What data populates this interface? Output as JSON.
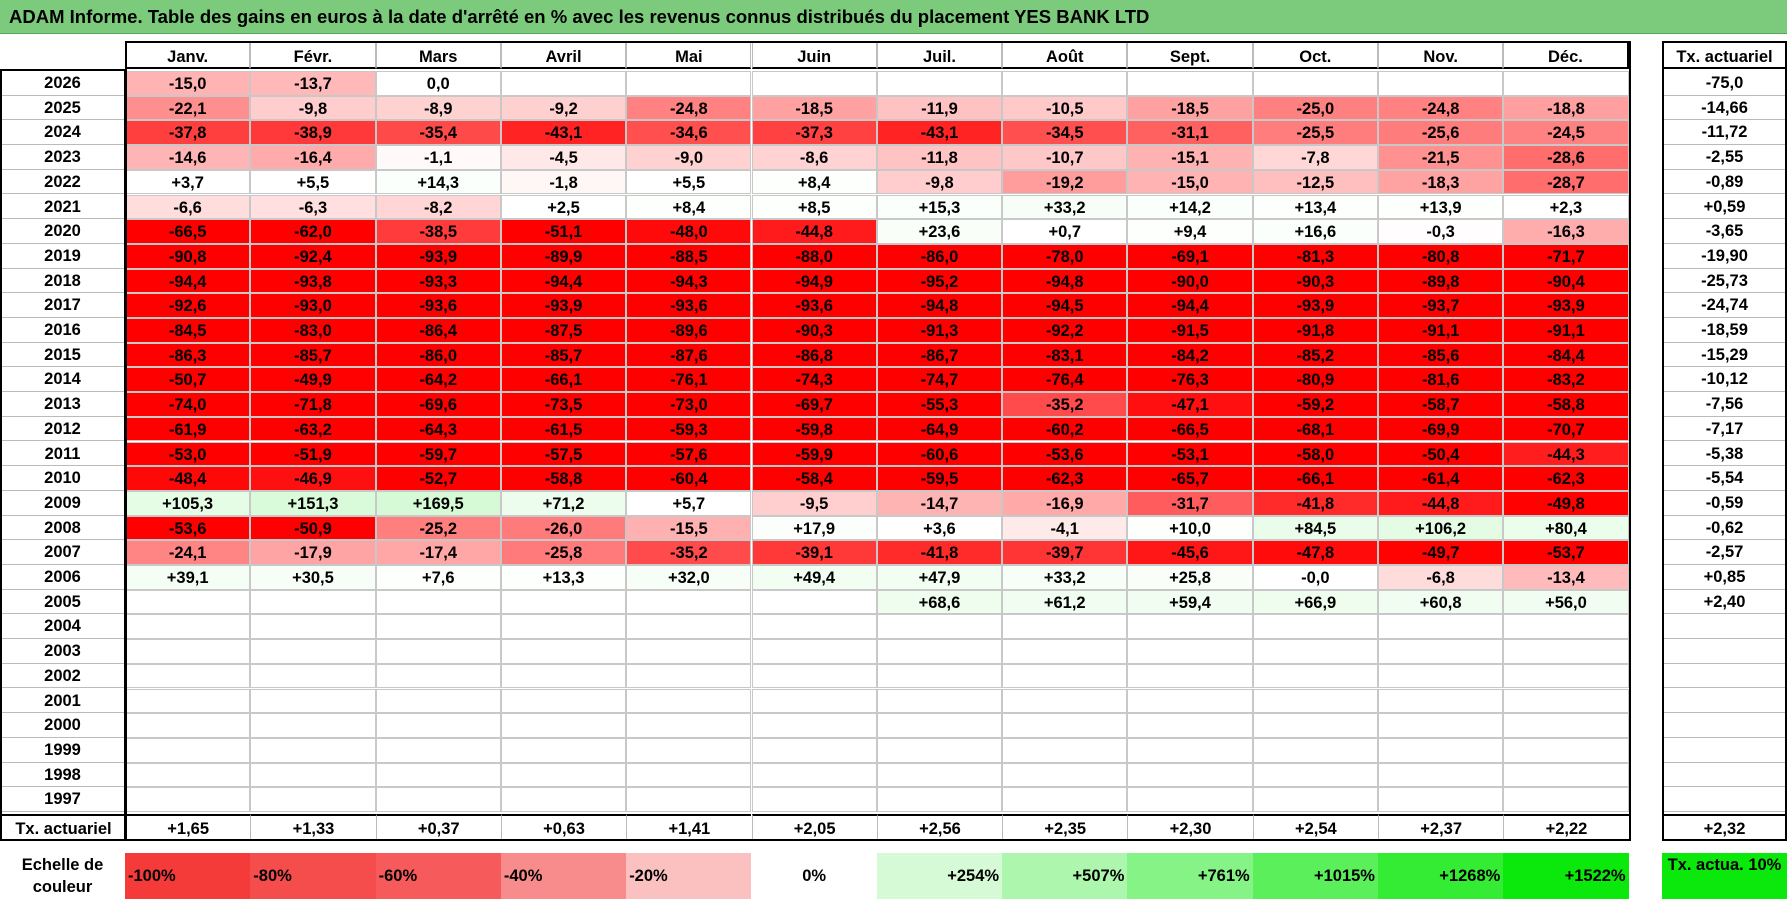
{
  "title": "ADAM Informe. Table des gains en euros à la date d'arrêté en % avec les revenus connus distribués du placement YES BANK LTD",
  "chart_data": {
    "type": "heatmap",
    "months": [
      "Janv.",
      "Févr.",
      "Mars",
      "Avril",
      "Mai",
      "Juin",
      "Juil.",
      "Août",
      "Sept.",
      "Oct.",
      "Nov.",
      "Déc."
    ],
    "annual_header": "Tx. actuariel",
    "rows": [
      {
        "year": "2026",
        "values": [
          "-15,0",
          "-13,7",
          "0,0",
          "",
          "",
          "",
          "",
          "",
          "",
          "",
          "",
          ""
        ],
        "annual": "-75,0"
      },
      {
        "year": "2025",
        "values": [
          "-22,1",
          "-9,8",
          "-8,9",
          "-9,2",
          "-24,8",
          "-18,5",
          "-11,9",
          "-10,5",
          "-18,5",
          "-25,0",
          "-24,8",
          "-18,8"
        ],
        "annual": "-14,66"
      },
      {
        "year": "2024",
        "values": [
          "-37,8",
          "-38,9",
          "-35,4",
          "-43,1",
          "-34,6",
          "-37,3",
          "-43,1",
          "-34,5",
          "-31,1",
          "-25,5",
          "-25,6",
          "-24,5"
        ],
        "annual": "-11,72"
      },
      {
        "year": "2023",
        "values": [
          "-14,6",
          "-16,4",
          "-1,1",
          "-4,5",
          "-9,0",
          "-8,6",
          "-11,8",
          "-10,7",
          "-15,1",
          "-7,8",
          "-21,5",
          "-28,6"
        ],
        "annual": "-2,55"
      },
      {
        "year": "2022",
        "values": [
          "+3,7",
          "+5,5",
          "+14,3",
          "-1,8",
          "+5,5",
          "+8,4",
          "-9,8",
          "-19,2",
          "-15,0",
          "-12,5",
          "-18,3",
          "-28,7"
        ],
        "annual": "-0,89"
      },
      {
        "year": "2021",
        "values": [
          "-6,6",
          "-6,3",
          "-8,2",
          "+2,5",
          "+8,4",
          "+8,5",
          "+15,3",
          "+33,2",
          "+14,2",
          "+13,4",
          "+13,9",
          "+2,3"
        ],
        "annual": "+0,59"
      },
      {
        "year": "2020",
        "values": [
          "-66,5",
          "-62,0",
          "-38,5",
          "-51,1",
          "-48,0",
          "-44,8",
          "+23,6",
          "+0,7",
          "+9,4",
          "+16,6",
          "-0,3",
          "-16,3"
        ],
        "annual": "-3,65"
      },
      {
        "year": "2019",
        "values": [
          "-90,8",
          "-92,4",
          "-93,9",
          "-89,9",
          "-88,5",
          "-88,0",
          "-86,0",
          "-78,0",
          "-69,1",
          "-81,3",
          "-80,8",
          "-71,7"
        ],
        "annual": "-19,90"
      },
      {
        "year": "2018",
        "values": [
          "-94,4",
          "-93,8",
          "-93,3",
          "-94,4",
          "-94,3",
          "-94,9",
          "-95,2",
          "-94,8",
          "-90,0",
          "-90,3",
          "-89,8",
          "-90,4"
        ],
        "annual": "-25,73"
      },
      {
        "year": "2017",
        "values": [
          "-92,6",
          "-93,0",
          "-93,6",
          "-93,9",
          "-93,6",
          "-93,6",
          "-94,8",
          "-94,5",
          "-94,4",
          "-93,9",
          "-93,7",
          "-93,9"
        ],
        "annual": "-24,74"
      },
      {
        "year": "2016",
        "values": [
          "-84,5",
          "-83,0",
          "-86,4",
          "-87,5",
          "-89,6",
          "-90,3",
          "-91,3",
          "-92,2",
          "-91,5",
          "-91,8",
          "-91,1",
          "-91,1"
        ],
        "annual": "-18,59"
      },
      {
        "year": "2015",
        "values": [
          "-86,3",
          "-85,7",
          "-86,0",
          "-85,7",
          "-87,6",
          "-86,8",
          "-86,7",
          "-83,1",
          "-84,2",
          "-85,2",
          "-85,6",
          "-84,4"
        ],
        "annual": "-15,29"
      },
      {
        "year": "2014",
        "values": [
          "-50,7",
          "-49,9",
          "-64,2",
          "-66,1",
          "-76,1",
          "-74,3",
          "-74,7",
          "-76,4",
          "-76,3",
          "-80,9",
          "-81,6",
          "-83,2"
        ],
        "annual": "-10,12"
      },
      {
        "year": "2013",
        "values": [
          "-74,0",
          "-71,8",
          "-69,6",
          "-73,5",
          "-73,0",
          "-69,7",
          "-55,3",
          "-35,2",
          "-47,1",
          "-59,2",
          "-58,7",
          "-58,8"
        ],
        "annual": "-7,56"
      },
      {
        "year": "2012",
        "values": [
          "-61,9",
          "-63,2",
          "-64,3",
          "-61,5",
          "-59,3",
          "-59,8",
          "-64,9",
          "-60,2",
          "-66,5",
          "-68,1",
          "-69,9",
          "-70,7"
        ],
        "annual": "-7,17"
      },
      {
        "year": "2011",
        "values": [
          "-53,0",
          "-51,9",
          "-59,7",
          "-57,5",
          "-57,6",
          "-59,9",
          "-60,6",
          "-53,6",
          "-53,1",
          "-58,0",
          "-50,4",
          "-44,3"
        ],
        "annual": "-5,38"
      },
      {
        "year": "2010",
        "values": [
          "-48,4",
          "-46,9",
          "-52,7",
          "-58,8",
          "-60,4",
          "-58,4",
          "-59,5",
          "-62,3",
          "-65,7",
          "-66,1",
          "-61,4",
          "-62,3"
        ],
        "annual": "-5,54"
      },
      {
        "year": "2009",
        "values": [
          "+105,3",
          "+151,3",
          "+169,5",
          "+71,2",
          "+5,7",
          "-9,5",
          "-14,7",
          "-16,9",
          "-31,7",
          "-41,8",
          "-44,8",
          "-49,8"
        ],
        "annual": "-0,59"
      },
      {
        "year": "2008",
        "values": [
          "-53,6",
          "-50,9",
          "-25,2",
          "-26,0",
          "-15,5",
          "+17,9",
          "+3,6",
          "-4,1",
          "+10,0",
          "+84,5",
          "+106,2",
          "+80,4"
        ],
        "annual": "-0,62"
      },
      {
        "year": "2007",
        "values": [
          "-24,1",
          "-17,9",
          "-17,4",
          "-25,8",
          "-35,2",
          "-39,1",
          "-41,8",
          "-39,7",
          "-45,6",
          "-47,8",
          "-49,7",
          "-53,7"
        ],
        "annual": "-2,57"
      },
      {
        "year": "2006",
        "values": [
          "+39,1",
          "+30,5",
          "+7,6",
          "+13,3",
          "+32,0",
          "+49,4",
          "+47,9",
          "+33,2",
          "+25,8",
          "-0,0",
          "-6,8",
          "-13,4"
        ],
        "annual": "+0,85"
      },
      {
        "year": "2005",
        "values": [
          "",
          "",
          "",
          "",
          "",
          "",
          "+68,6",
          "+61,2",
          "+59,4",
          "+66,9",
          "+60,8",
          "+56,0"
        ],
        "annual": "+2,40"
      },
      {
        "year": "2004",
        "values": [
          "",
          "",
          "",
          "",
          "",
          "",
          "",
          "",
          "",
          "",
          "",
          ""
        ],
        "annual": ""
      },
      {
        "year": "2003",
        "values": [
          "",
          "",
          "",
          "",
          "",
          "",
          "",
          "",
          "",
          "",
          "",
          ""
        ],
        "annual": ""
      },
      {
        "year": "2002",
        "values": [
          "",
          "",
          "",
          "",
          "",
          "",
          "",
          "",
          "",
          "",
          "",
          ""
        ],
        "annual": ""
      },
      {
        "year": "2001",
        "values": [
          "",
          "",
          "",
          "",
          "",
          "",
          "",
          "",
          "",
          "",
          "",
          ""
        ],
        "annual": ""
      },
      {
        "year": "2000",
        "values": [
          "",
          "",
          "",
          "",
          "",
          "",
          "",
          "",
          "",
          "",
          "",
          ""
        ],
        "annual": ""
      },
      {
        "year": "1999",
        "values": [
          "",
          "",
          "",
          "",
          "",
          "",
          "",
          "",
          "",
          "",
          "",
          ""
        ],
        "annual": ""
      },
      {
        "year": "1998",
        "values": [
          "",
          "",
          "",
          "",
          "",
          "",
          "",
          "",
          "",
          "",
          "",
          ""
        ],
        "annual": ""
      },
      {
        "year": "1997",
        "values": [
          "",
          "",
          "",
          "",
          "",
          "",
          "",
          "",
          "",
          "",
          "",
          ""
        ],
        "annual": ""
      }
    ],
    "footer": {
      "label": "Tx. actuariel",
      "values": [
        "+1,65",
        "+1,33",
        "+0,37",
        "+0,63",
        "+1,41",
        "+2,05",
        "+2,56",
        "+2,35",
        "+2,30",
        "+2,54",
        "+2,37",
        "+2,22"
      ],
      "annual": "+2,32"
    },
    "color_scale": {
      "label": "Echelle de couleur",
      "stops": [
        {
          "label": "-100%",
          "color": "#f53a3a"
        },
        {
          "label": "-80%",
          "color": "#f54c4c"
        },
        {
          "label": "-60%",
          "color": "#f65a5a"
        },
        {
          "label": "-40%",
          "color": "#f88c8c"
        },
        {
          "label": "-20%",
          "color": "#fbc0c0"
        },
        {
          "label": "0%",
          "color": "#ffffff"
        },
        {
          "label": "+254%",
          "color": "#d6fad6"
        },
        {
          "label": "+507%",
          "color": "#adf6ad"
        },
        {
          "label": "+761%",
          "color": "#85f385"
        },
        {
          "label": "+1015%",
          "color": "#5cef5c"
        },
        {
          "label": "+1268%",
          "color": "#34ec34"
        },
        {
          "label": "+1522%",
          "color": "#0be80b"
        }
      ],
      "annual_label": "Tx. actua. 10%",
      "annual_color": "#0be80b"
    }
  }
}
